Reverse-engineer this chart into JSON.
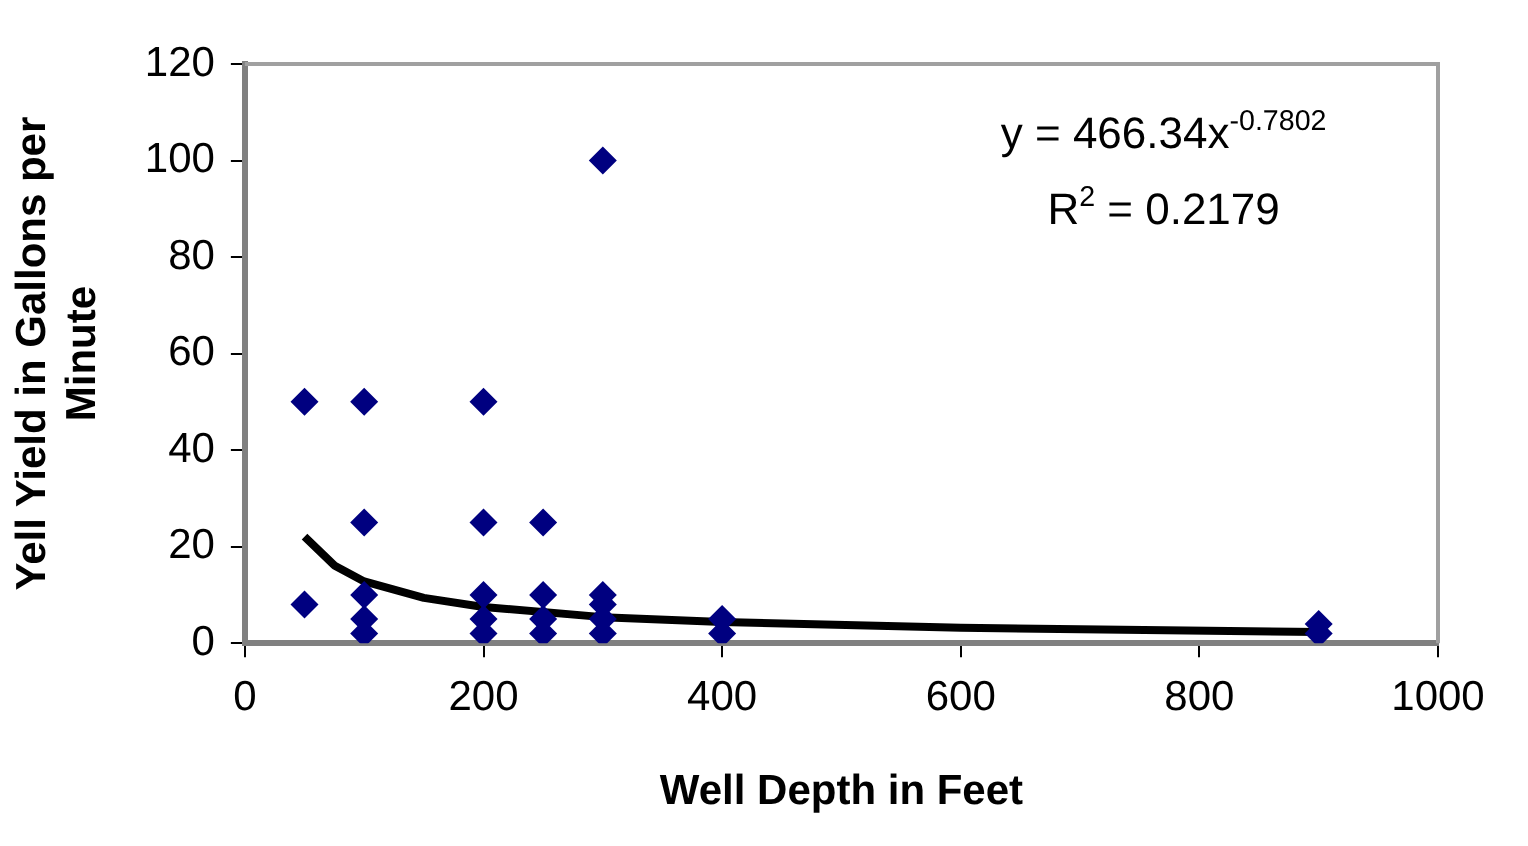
{
  "chart_data": {
    "type": "scatter",
    "xlabel": "Well Depth in Feet",
    "ylabel": "Yell Yield in Gallons per Minute",
    "xlim": [
      0,
      1000
    ],
    "xticks": [
      0,
      200,
      400,
      600,
      800,
      1000
    ],
    "ylim": [
      0,
      120
    ],
    "yticks": [
      0,
      20,
      40,
      60,
      80,
      100,
      120
    ],
    "grid": false,
    "legend": false,
    "marker": "diamond",
    "annotations": [
      "y = 466.34x$^{-0.7802}$",
      "R$^{2}$ = 0.2179"
    ],
    "series": [
      {
        "color": "#000080",
        "x": [
          50,
          50,
          100,
          100,
          100,
          100,
          100,
          200,
          200,
          200,
          200,
          200,
          250,
          250,
          250,
          250,
          300,
          300,
          300,
          300,
          300,
          400,
          400,
          900,
          900
        ],
        "values": [
          50,
          8,
          50,
          25,
          10,
          5,
          2,
          50,
          25,
          10,
          5,
          2,
          25,
          10,
          5,
          2,
          100,
          10,
          8,
          5,
          2,
          5,
          2,
          4,
          2
        ]
      },
      {
        "type": "line",
        "color": "#000000",
        "marker": "none",
        "x": [
          50,
          75,
          100,
          150,
          200,
          300,
          400,
          600,
          900
        ],
        "values": [
          22.1,
          16.1,
          12.8,
          9.4,
          7.5,
          5.4,
          4.4,
          3.2,
          2.3
        ]
      }
    ]
  }
}
